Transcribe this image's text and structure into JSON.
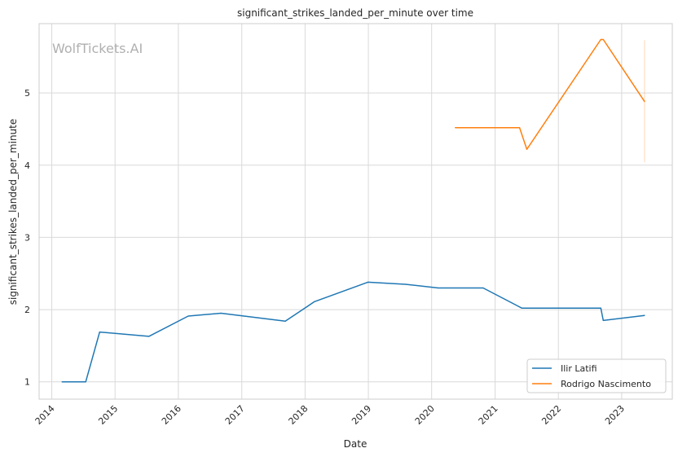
{
  "chart_data": {
    "type": "line",
    "title": "significant_strikes_landed_per_minute over time",
    "xlabel": "Date",
    "ylabel": "significant_strikes_landed_per_minute",
    "watermark": "WolfTickets.AI",
    "x_ticks": [
      "2014",
      "2015",
      "2016",
      "2017",
      "2018",
      "2019",
      "2020",
      "2021",
      "2022",
      "2023"
    ],
    "y_ticks": [
      "1",
      "2",
      "3",
      "4",
      "5"
    ],
    "xlim": [
      "2013-10-20",
      "2023-10-20"
    ],
    "ylim": [
      0.76,
      5.96
    ],
    "grid": true,
    "legend_position": "bottom-right",
    "series": [
      {
        "name": "Ilir Latifi",
        "color": "#1f77b4",
        "points": [
          [
            "2014-03-01",
            1.0
          ],
          [
            "2014-07-16",
            1.0
          ],
          [
            "2014-10-04",
            1.69
          ],
          [
            "2015-07-15",
            1.63
          ],
          [
            "2016-02-27",
            1.91
          ],
          [
            "2016-09-03",
            1.95
          ],
          [
            "2017-09-09",
            1.84
          ],
          [
            "2018-02-24",
            2.11
          ],
          [
            "2018-12-29",
            2.38
          ],
          [
            "2019-08-03",
            2.35
          ],
          [
            "2020-02-08",
            2.3
          ],
          [
            "2020-10-24",
            2.3
          ],
          [
            "2021-06-05",
            2.02
          ],
          [
            "2022-09-03",
            2.02
          ],
          [
            "2022-09-17",
            1.85
          ],
          [
            "2023-05-13",
            1.92
          ]
        ]
      },
      {
        "name": "Rodrigo Nascimento",
        "color": "#ff7f0e",
        "points": [
          [
            "2020-05-16",
            4.52
          ],
          [
            "2021-05-22",
            4.52
          ],
          [
            "2021-07-03",
            4.22
          ],
          [
            "2022-09-03",
            5.74
          ],
          [
            "2022-09-17",
            5.74
          ],
          [
            "2023-05-13",
            4.88
          ]
        ],
        "spike": [
          "2023-05-13",
          4.04,
          5.73
        ]
      }
    ]
  }
}
